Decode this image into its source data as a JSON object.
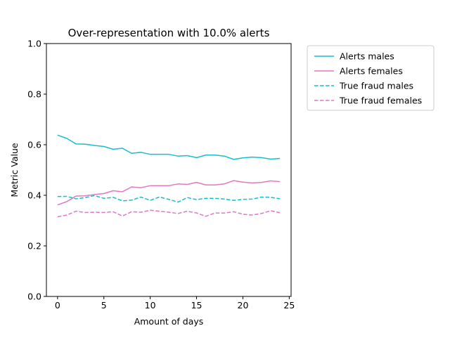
{
  "chart_data": {
    "type": "line",
    "title": "Over-representation with 10.0% alerts",
    "xlabel": "Amount of days",
    "ylabel": "Metric Value",
    "xlim": [
      -1.2,
      25.2
    ],
    "ylim": [
      0,
      1
    ],
    "xticks": [
      0,
      5,
      10,
      15,
      20,
      25
    ],
    "xtick_labels": [
      "0",
      "5",
      "10",
      "15",
      "20",
      "25"
    ],
    "yticks": [
      0,
      0.2,
      0.4,
      0.6,
      0.8,
      1.0
    ],
    "ytick_labels": [
      "0.0",
      "0.2",
      "0.4",
      "0.6",
      "0.8",
      "1.0"
    ],
    "grid": false,
    "legend_position": "outside-right-top",
    "x": [
      0,
      1,
      2,
      3,
      4,
      5,
      6,
      7,
      8,
      9,
      10,
      11,
      12,
      13,
      14,
      15,
      16,
      17,
      18,
      19,
      20,
      21,
      22,
      23,
      24
    ],
    "series": [
      {
        "name": "Alerts males",
        "color": "#17becf",
        "dash": "solid",
        "values": [
          0.638,
          0.625,
          0.603,
          0.602,
          0.597,
          0.593,
          0.582,
          0.586,
          0.566,
          0.57,
          0.562,
          0.562,
          0.562,
          0.555,
          0.557,
          0.549,
          0.559,
          0.559,
          0.555,
          0.542,
          0.548,
          0.551,
          0.549,
          0.543,
          0.546
        ]
      },
      {
        "name": "Alerts females",
        "color": "#e377c2",
        "dash": "solid",
        "values": [
          0.362,
          0.375,
          0.397,
          0.398,
          0.403,
          0.407,
          0.418,
          0.414,
          0.433,
          0.43,
          0.438,
          0.438,
          0.438,
          0.445,
          0.443,
          0.451,
          0.441,
          0.441,
          0.445,
          0.458,
          0.452,
          0.449,
          0.451,
          0.457,
          0.454
        ]
      },
      {
        "name": "True fraud males",
        "color": "#17becf",
        "dash": "dashed",
        "values": [
          0.395,
          0.396,
          0.386,
          0.391,
          0.399,
          0.388,
          0.392,
          0.378,
          0.381,
          0.393,
          0.38,
          0.393,
          0.384,
          0.373,
          0.391,
          0.383,
          0.388,
          0.388,
          0.385,
          0.38,
          0.384,
          0.385,
          0.393,
          0.392,
          0.386
        ]
      },
      {
        "name": "True fraud females",
        "color": "#e377c2",
        "dash": "dashed",
        "values": [
          0.315,
          0.322,
          0.337,
          0.332,
          0.333,
          0.332,
          0.335,
          0.318,
          0.335,
          0.333,
          0.341,
          0.337,
          0.333,
          0.328,
          0.337,
          0.33,
          0.317,
          0.33,
          0.33,
          0.335,
          0.325,
          0.322,
          0.328,
          0.339,
          0.331
        ]
      }
    ]
  }
}
